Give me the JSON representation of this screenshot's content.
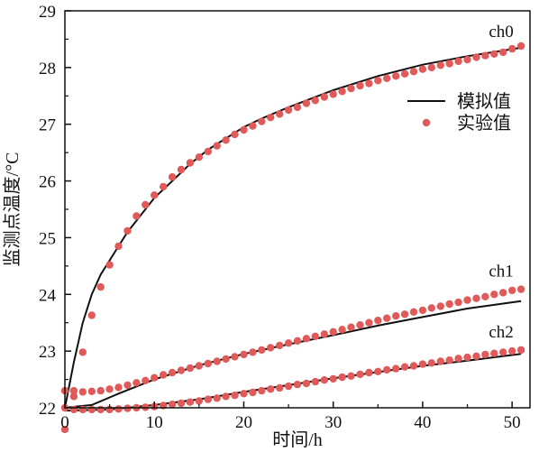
{
  "chart_data": {
    "type": "line",
    "title": "",
    "xlabel": "时间/h",
    "ylabel": "监测点温度/°C",
    "xlim": [
      0,
      52
    ],
    "ylim": [
      22,
      29
    ],
    "x_ticks": [
      0,
      10,
      20,
      30,
      40,
      50
    ],
    "y_ticks": [
      22,
      23,
      24,
      25,
      26,
      27,
      28,
      29
    ],
    "grid": false,
    "legend": {
      "position": "top-right",
      "entries": [
        {
          "label": "模拟值",
          "marker": "line"
        },
        {
          "label": "实验值",
          "marker": "dot"
        }
      ]
    },
    "colors": {
      "simulated": "#111111",
      "experimental": "#e05a5a",
      "axis": "#111111"
    },
    "series_tags": [
      "ch0",
      "ch1",
      "ch2"
    ],
    "simulated": [
      {
        "name": "ch0",
        "points": [
          [
            0,
            22.0
          ],
          [
            1,
            22.8
          ],
          [
            2,
            23.5
          ],
          [
            3,
            24.0
          ],
          [
            4,
            24.35
          ],
          [
            5,
            24.6
          ],
          [
            6,
            24.85
          ],
          [
            7,
            25.1
          ],
          [
            8,
            25.3
          ],
          [
            10,
            25.7
          ],
          [
            12,
            26.0
          ],
          [
            14,
            26.3
          ],
          [
            16,
            26.55
          ],
          [
            18,
            26.75
          ],
          [
            20,
            26.95
          ],
          [
            22,
            27.1
          ],
          [
            25,
            27.3
          ],
          [
            30,
            27.6
          ],
          [
            35,
            27.85
          ],
          [
            40,
            28.05
          ],
          [
            45,
            28.2
          ],
          [
            51,
            28.35
          ]
        ]
      },
      {
        "name": "ch1",
        "points": [
          [
            0,
            22.0
          ],
          [
            3,
            22.05
          ],
          [
            6,
            22.25
          ],
          [
            10,
            22.5
          ],
          [
            15,
            22.75
          ],
          [
            20,
            22.95
          ],
          [
            25,
            23.12
          ],
          [
            30,
            23.28
          ],
          [
            35,
            23.45
          ],
          [
            40,
            23.6
          ],
          [
            45,
            23.75
          ],
          [
            51,
            23.88
          ]
        ]
      },
      {
        "name": "ch2",
        "points": [
          [
            0,
            21.95
          ],
          [
            5,
            21.97
          ],
          [
            10,
            22.05
          ],
          [
            15,
            22.15
          ],
          [
            20,
            22.28
          ],
          [
            25,
            22.4
          ],
          [
            30,
            22.52
          ],
          [
            35,
            22.63
          ],
          [
            40,
            22.74
          ],
          [
            45,
            22.83
          ],
          [
            51,
            22.95
          ]
        ]
      }
    ],
    "experimental": [
      {
        "name": "ch0",
        "points": [
          [
            0,
            22.0
          ],
          [
            1,
            22.2
          ],
          [
            2,
            22.98
          ],
          [
            3,
            23.63
          ],
          [
            4,
            24.13
          ],
          [
            5,
            24.52
          ],
          [
            6,
            24.85
          ],
          [
            7,
            25.12
          ],
          [
            8,
            25.38
          ],
          [
            9,
            25.58
          ],
          [
            10,
            25.75
          ],
          [
            11,
            25.9
          ],
          [
            12,
            26.07
          ],
          [
            13,
            26.2
          ],
          [
            14,
            26.32
          ],
          [
            15,
            26.42
          ],
          [
            16,
            26.52
          ],
          [
            17,
            26.62
          ],
          [
            18,
            26.72
          ],
          [
            19,
            26.82
          ],
          [
            20,
            26.9
          ],
          [
            21,
            26.97
          ],
          [
            22,
            27.05
          ],
          [
            23,
            27.12
          ],
          [
            24,
            27.18
          ],
          [
            25,
            27.25
          ],
          [
            26,
            27.3
          ],
          [
            27,
            27.37
          ],
          [
            28,
            27.42
          ],
          [
            29,
            27.48
          ],
          [
            30,
            27.53
          ],
          [
            31,
            27.58
          ],
          [
            32,
            27.63
          ],
          [
            33,
            27.68
          ],
          [
            34,
            27.72
          ],
          [
            35,
            27.77
          ],
          [
            36,
            27.81
          ],
          [
            37,
            27.85
          ],
          [
            38,
            27.89
          ],
          [
            39,
            27.93
          ],
          [
            40,
            27.97
          ],
          [
            41,
            28.0
          ],
          [
            42,
            28.04
          ],
          [
            43,
            28.07
          ],
          [
            44,
            28.11
          ],
          [
            45,
            28.14
          ],
          [
            46,
            28.18
          ],
          [
            47,
            28.21
          ],
          [
            48,
            28.24
          ],
          [
            49,
            28.27
          ],
          [
            50,
            28.33
          ],
          [
            51,
            28.38
          ]
        ]
      },
      {
        "name": "ch1",
        "points": [
          [
            0,
            22.3
          ],
          [
            1,
            22.3
          ],
          [
            2,
            22.28
          ],
          [
            3,
            22.29
          ],
          [
            4,
            22.3
          ],
          [
            5,
            22.33
          ],
          [
            6,
            22.36
          ],
          [
            7,
            22.4
          ],
          [
            8,
            22.44
          ],
          [
            9,
            22.48
          ],
          [
            10,
            22.53
          ],
          [
            11,
            22.58
          ],
          [
            12,
            22.62
          ],
          [
            13,
            22.66
          ],
          [
            14,
            22.7
          ],
          [
            15,
            22.74
          ],
          [
            16,
            22.78
          ],
          [
            17,
            22.82
          ],
          [
            18,
            22.86
          ],
          [
            19,
            22.9
          ],
          [
            20,
            22.94
          ],
          [
            21,
            22.98
          ],
          [
            22,
            23.02
          ],
          [
            23,
            23.06
          ],
          [
            24,
            23.1
          ],
          [
            25,
            23.14
          ],
          [
            26,
            23.18
          ],
          [
            27,
            23.22
          ],
          [
            28,
            23.26
          ],
          [
            29,
            23.3
          ],
          [
            30,
            23.34
          ],
          [
            31,
            23.38
          ],
          [
            32,
            23.42
          ],
          [
            33,
            23.46
          ],
          [
            34,
            23.5
          ],
          [
            35,
            23.54
          ],
          [
            36,
            23.58
          ],
          [
            37,
            23.62
          ],
          [
            38,
            23.65
          ],
          [
            39,
            23.69
          ],
          [
            40,
            23.72
          ],
          [
            41,
            23.76
          ],
          [
            42,
            23.79
          ],
          [
            43,
            23.83
          ],
          [
            44,
            23.86
          ],
          [
            45,
            23.9
          ],
          [
            46,
            23.93
          ],
          [
            47,
            23.96
          ],
          [
            48,
            24.0
          ],
          [
            49,
            24.03
          ],
          [
            50,
            24.07
          ],
          [
            51,
            24.09
          ]
        ]
      },
      {
        "name": "ch2",
        "points": [
          [
            0,
            21.62
          ],
          [
            1,
            21.97
          ],
          [
            2,
            21.97
          ],
          [
            3,
            21.97
          ],
          [
            4,
            21.97
          ],
          [
            5,
            21.97
          ],
          [
            6,
            21.98
          ],
          [
            7,
            21.99
          ],
          [
            8,
            22.0
          ],
          [
            9,
            22.01
          ],
          [
            10,
            22.02
          ],
          [
            11,
            22.04
          ],
          [
            12,
            22.06
          ],
          [
            13,
            22.08
          ],
          [
            14,
            22.1
          ],
          [
            15,
            22.12
          ],
          [
            16,
            22.15
          ],
          [
            17,
            22.17
          ],
          [
            18,
            22.2
          ],
          [
            19,
            22.22
          ],
          [
            20,
            22.25
          ],
          [
            21,
            22.27
          ],
          [
            22,
            22.3
          ],
          [
            23,
            22.33
          ],
          [
            24,
            22.35
          ],
          [
            25,
            22.38
          ],
          [
            26,
            22.41
          ],
          [
            27,
            22.43
          ],
          [
            28,
            22.46
          ],
          [
            29,
            22.49
          ],
          [
            30,
            22.51
          ],
          [
            31,
            22.54
          ],
          [
            32,
            22.56
          ],
          [
            33,
            22.59
          ],
          [
            34,
            22.62
          ],
          [
            35,
            22.64
          ],
          [
            36,
            22.67
          ],
          [
            37,
            22.69
          ],
          [
            38,
            22.72
          ],
          [
            39,
            22.74
          ],
          [
            40,
            22.77
          ],
          [
            41,
            22.79
          ],
          [
            42,
            22.82
          ],
          [
            43,
            22.84
          ],
          [
            44,
            22.87
          ],
          [
            45,
            22.89
          ],
          [
            46,
            22.91
          ],
          [
            47,
            22.94
          ],
          [
            48,
            22.96
          ],
          [
            49,
            22.98
          ],
          [
            50,
            23.0
          ],
          [
            51,
            23.02
          ]
        ]
      }
    ]
  }
}
